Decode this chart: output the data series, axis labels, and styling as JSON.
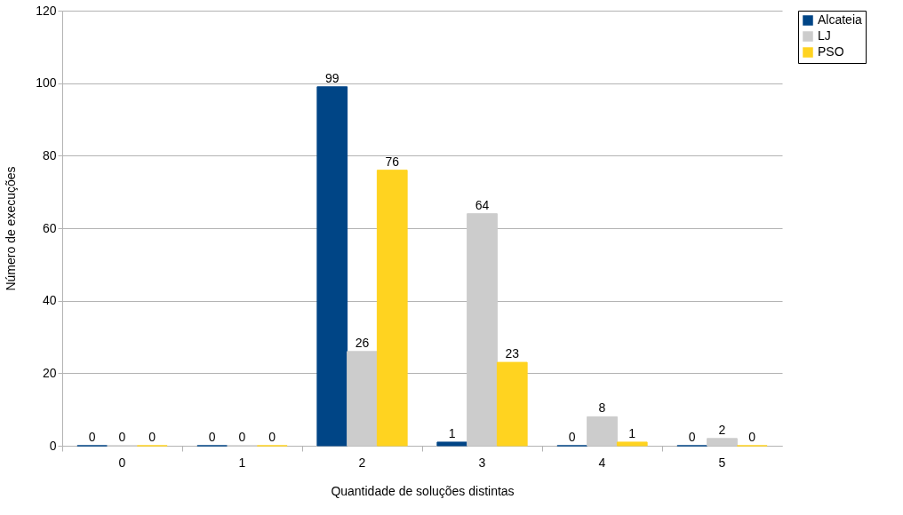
{
  "chart_data": {
    "type": "bar",
    "xlabel": "Quantidade de soluções distintas",
    "ylabel": "Número de execuções",
    "categories": [
      "0",
      "1",
      "2",
      "3",
      "4",
      "5"
    ],
    "series": [
      {
        "name": "Alcateia",
        "color": "#004586",
        "values": [
          0,
          0,
          99,
          1,
          0,
          0
        ]
      },
      {
        "name": "LJ",
        "color": "#cccccc",
        "values": [
          0,
          0,
          26,
          64,
          8,
          2
        ]
      },
      {
        "name": "PSO",
        "color": "#ffd320",
        "values": [
          0,
          0,
          76,
          23,
          1,
          0
        ]
      }
    ],
    "ylim": [
      0,
      120
    ],
    "yticks": [
      0,
      20,
      40,
      60,
      80,
      100,
      120
    ],
    "grid": "y",
    "legend": "right",
    "data_labels": true
  }
}
